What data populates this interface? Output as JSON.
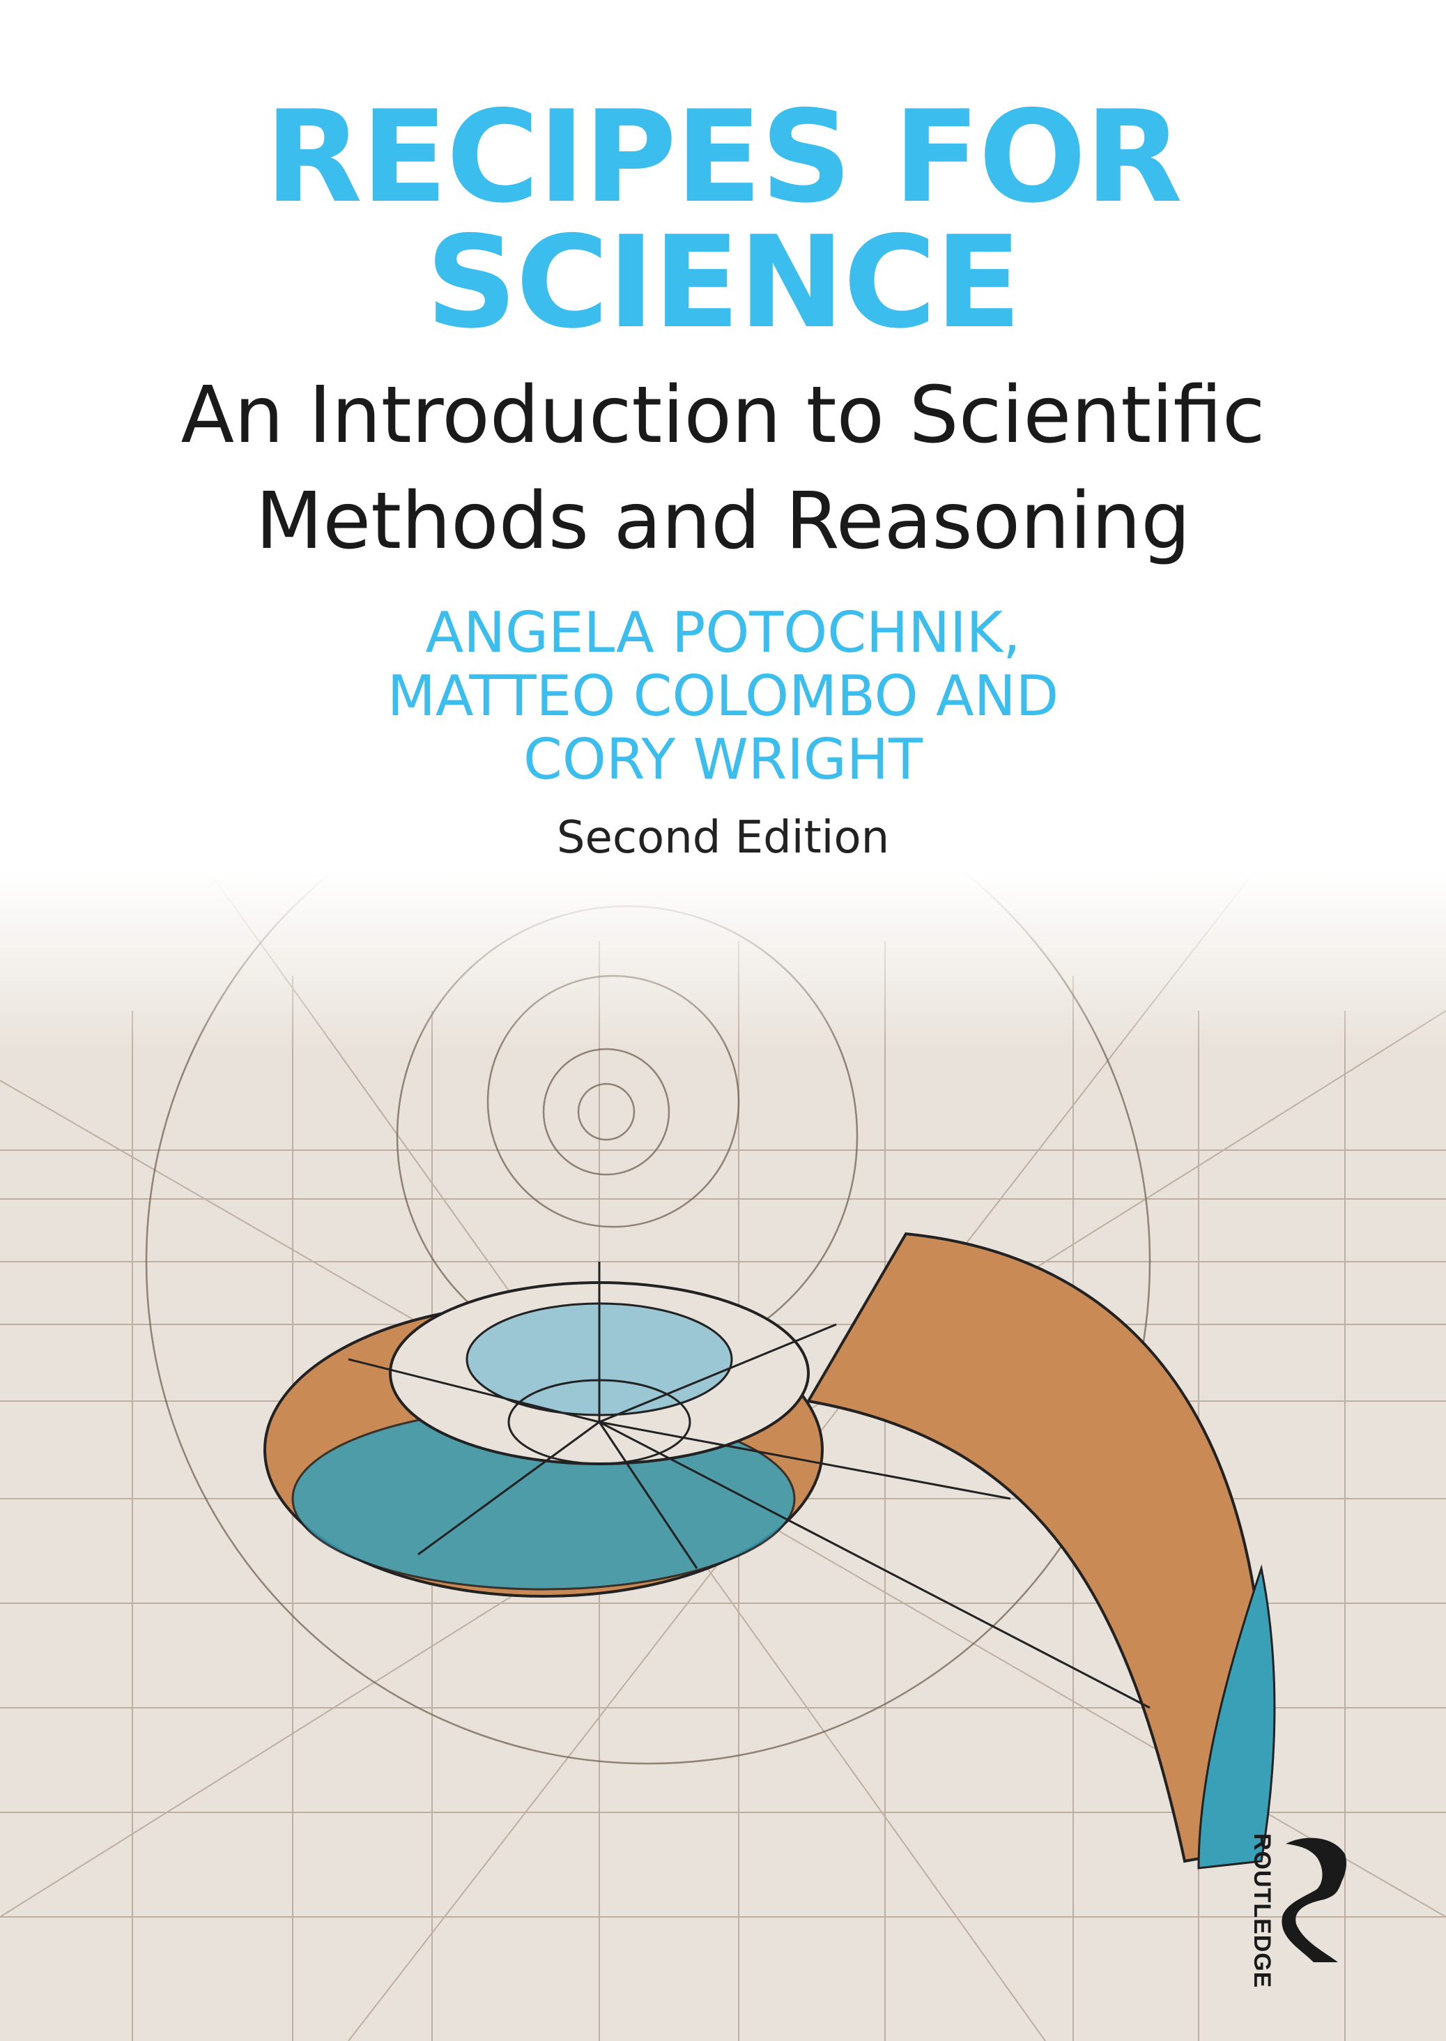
{
  "cover": {
    "title_line1": "RECIPES FOR",
    "title_line2": "SCIENCE",
    "subtitle_line1": "An Introduction to Scientific",
    "subtitle_line2": "Methods and Reasoning",
    "authors_line1": "ANGELA POTOCHNIK,",
    "authors_line2": "MATTEO COLOMBO AND",
    "authors_line3": "CORY WRIGHT",
    "edition": "Second Edition",
    "publisher": "ROUTLEDGE"
  },
  "colors": {
    "title": "#3bbdee",
    "shell_orange": "#c98a55",
    "shell_teal": "#3aa0b8"
  }
}
